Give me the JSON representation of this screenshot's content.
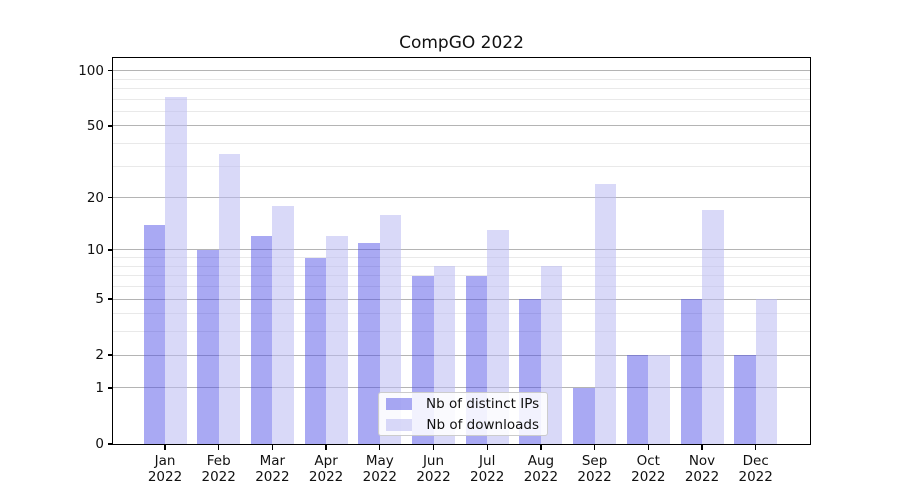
{
  "chart_data": {
    "type": "bar",
    "title": "CompGO 2022",
    "categories": [
      "Jan",
      "Feb",
      "Mar",
      "Apr",
      "May",
      "Jun",
      "Jul",
      "Aug",
      "Sep",
      "Oct",
      "Nov",
      "Dec"
    ],
    "category_year_label": "2022",
    "series": [
      {
        "name": "Nb of distinct IPs",
        "values": [
          14,
          10,
          12,
          9,
          11,
          7,
          7,
          5,
          1,
          2,
          5,
          2
        ],
        "color": "rgba(75,75,230,0.48)"
      },
      {
        "name": "Nb of downloads",
        "values": [
          72,
          35,
          18,
          12,
          16,
          8,
          13,
          8,
          24,
          2,
          17,
          5
        ],
        "color": "rgba(185,185,242,0.55)"
      }
    ],
    "xlabel": "",
    "ylabel": "",
    "y_axis": {
      "scale": "log1p",
      "major_ticks": [
        0,
        1,
        2,
        5,
        10,
        20,
        50,
        100
      ],
      "minor_ticks": [
        3,
        4,
        6,
        7,
        8,
        9,
        30,
        40,
        60,
        70,
        80,
        90
      ],
      "display_max": 117
    },
    "grid": "on",
    "legend_position": "lower center",
    "colors": {
      "major_gridline": "#b4b4b4",
      "minor_gridline": "#e9e9e9",
      "axis_spine": "#000000",
      "text": "#111111"
    }
  }
}
